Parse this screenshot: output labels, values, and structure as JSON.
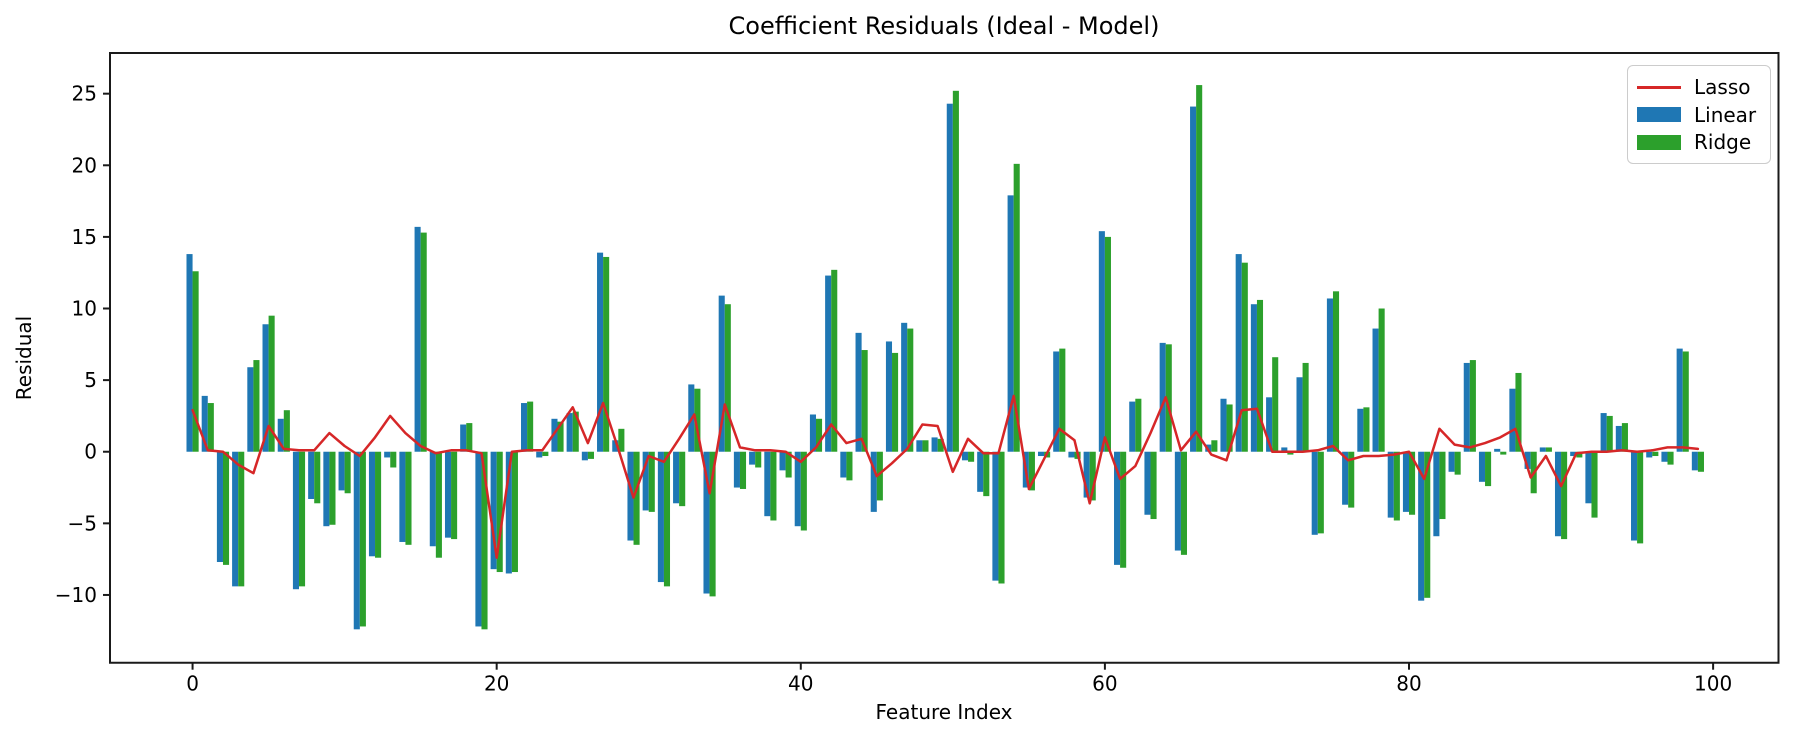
{
  "title": "Coefficient Residuals (Ideal - Model)",
  "chart_data": {
    "type": "bar+line",
    "title": "Coefficient Residuals (Ideal - Model)",
    "xlabel": "Feature Index",
    "ylabel": "Residual",
    "xlim": [
      -5.43,
      104.3
    ],
    "ylim": [
      -14.73,
      27.84
    ],
    "xticks": [
      0,
      20,
      40,
      60,
      80,
      100
    ],
    "yticks": [
      25,
      20,
      15,
      10,
      5,
      0,
      -5,
      -10
    ],
    "grid": false,
    "n_features": 100,
    "legend": {
      "position": "upper right",
      "entries": [
        {
          "label": "Lasso",
          "type": "line",
          "color": "#d62728"
        },
        {
          "label": "Linear",
          "type": "patch",
          "color": "#1f77b4"
        },
        {
          "label": "Ridge",
          "type": "patch",
          "color": "#2ca02c"
        }
      ]
    },
    "series": [
      {
        "name": "Linear",
        "type": "bar",
        "color": "#1f77b4",
        "values": [
          13.8,
          3.9,
          -7.7,
          -9.4,
          5.9,
          8.9,
          2.3,
          -9.6,
          -3.3,
          -5.2,
          -2.7,
          -12.4,
          -7.3,
          -0.4,
          -6.3,
          15.7,
          -6.6,
          -6.0,
          1.9,
          -12.2,
          -8.2,
          -8.5,
          3.4,
          -0.4,
          2.3,
          2.7,
          -0.6,
          13.9,
          0.8,
          -6.2,
          -4.1,
          -9.1,
          -3.6,
          4.7,
          -9.9,
          10.9,
          -2.5,
          -0.9,
          -4.5,
          -1.3,
          -5.2,
          2.6,
          12.3,
          -1.8,
          8.3,
          -4.2,
          7.7,
          9.0,
          0.8,
          1.0,
          24.3,
          -0.6,
          -2.8,
          -9.0,
          17.9,
          -2.5,
          -0.3,
          7.0,
          -0.4,
          -3.2,
          15.4,
          -7.9,
          3.5,
          -4.4,
          7.6,
          -6.9,
          24.1,
          0.5,
          3.7,
          13.8,
          10.3,
          3.8,
          0.3,
          5.2,
          -5.8,
          10.7,
          -3.7,
          3.0,
          8.6,
          -4.6,
          -4.2,
          -10.4,
          -5.9,
          -1.4,
          6.2,
          -2.1,
          0.2,
          4.4,
          -1.2,
          0.3,
          -5.9,
          -0.3,
          -3.6,
          2.7,
          1.8,
          -6.2,
          -0.4,
          -0.7,
          7.2,
          -1.3
        ]
      },
      {
        "name": "Ridge",
        "type": "bar",
        "color": "#2ca02c",
        "values": [
          12.6,
          3.4,
          -7.9,
          -9.4,
          6.4,
          9.5,
          2.9,
          -9.4,
          -3.6,
          -5.1,
          -2.9,
          -12.2,
          -7.4,
          -1.1,
          -6.5,
          15.3,
          -7.4,
          -6.1,
          2.0,
          -12.4,
          -8.4,
          -8.4,
          3.5,
          -0.3,
          2.1,
          2.8,
          -0.5,
          13.6,
          1.6,
          -6.5,
          -4.2,
          -9.4,
          -3.8,
          4.4,
          -10.1,
          10.3,
          -2.6,
          -1.1,
          -4.8,
          -1.8,
          -5.5,
          2.3,
          12.7,
          -2.0,
          7.1,
          -3.4,
          6.9,
          8.6,
          0.8,
          0.9,
          25.2,
          -0.7,
          -3.1,
          -9.2,
          20.1,
          -2.7,
          -0.4,
          7.2,
          -0.5,
          -3.4,
          15.0,
          -8.1,
          3.7,
          -4.7,
          7.5,
          -7.2,
          25.6,
          0.8,
          3.3,
          13.2,
          10.6,
          6.6,
          -0.2,
          6.2,
          -5.7,
          11.2,
          -3.9,
          3.1,
          10.0,
          -4.8,
          -4.4,
          -10.2,
          -4.7,
          -1.6,
          6.4,
          -2.4,
          -0.2,
          5.5,
          -2.9,
          0.3,
          -6.1,
          -0.4,
          -4.6,
          2.5,
          2.0,
          -6.4,
          -0.3,
          -0.9,
          7.0,
          -1.4
        ]
      },
      {
        "name": "Lasso",
        "type": "line",
        "color": "#d62728",
        "values": [
          2.9,
          0.1,
          0.0,
          -0.9,
          -1.5,
          1.8,
          0.2,
          0.1,
          0.1,
          1.3,
          0.4,
          -0.3,
          1.0,
          2.5,
          1.3,
          0.4,
          -0.1,
          0.1,
          0.1,
          -0.1,
          -7.4,
          0.0,
          0.1,
          0.1,
          1.6,
          3.1,
          0.6,
          3.4,
          0.2,
          -3.2,
          -0.3,
          -0.7,
          0.9,
          2.6,
          -2.9,
          3.3,
          0.3,
          0.1,
          0.1,
          0.0,
          -0.7,
          0.3,
          1.9,
          0.6,
          0.9,
          -1.7,
          -0.8,
          0.2,
          1.9,
          1.8,
          -1.4,
          0.9,
          -0.1,
          -0.1,
          3.9,
          -2.6,
          -0.5,
          1.6,
          0.8,
          -3.6,
          1.0,
          -1.9,
          -1.0,
          1.3,
          3.8,
          0.1,
          1.4,
          -0.2,
          -0.6,
          2.9,
          3.0,
          0.0,
          0.0,
          0.0,
          0.1,
          0.4,
          -0.6,
          -0.3,
          -0.3,
          -0.2,
          0.0,
          -1.9,
          1.6,
          0.5,
          0.3,
          0.6,
          1.0,
          1.6,
          -1.8,
          -0.3,
          -2.4,
          -0.1,
          0.0,
          0.0,
          0.1,
          0.0,
          0.1,
          0.3,
          0.3,
          0.2
        ]
      }
    ]
  }
}
